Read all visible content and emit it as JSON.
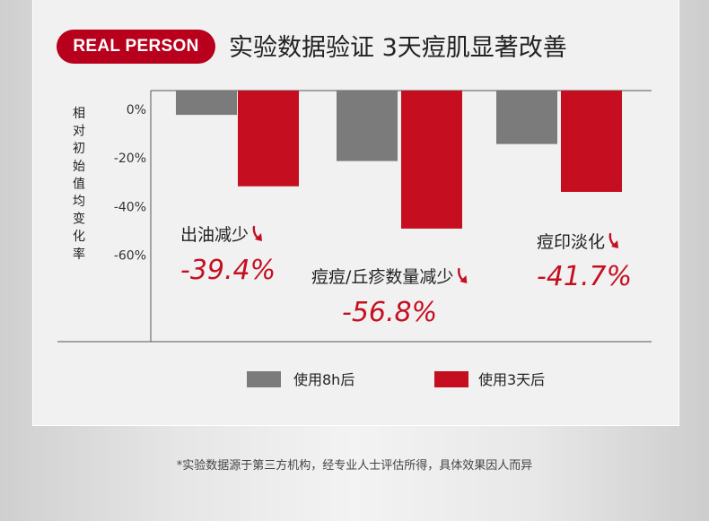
{
  "badge": "REAL PERSON",
  "headline": "实验数据验证 3天痘肌显著改善",
  "footnote": "*实验数据源于第三方机构，经专业人士评估所得，具体效果因人而异",
  "colors": {
    "series_8h": "#7b7b7b",
    "series_3d": "#c50f20",
    "badge": "#b8001d",
    "arrow": "#c50f20"
  },
  "chart_data": {
    "type": "bar",
    "ylabel": "相对初始值均变化率",
    "ytick_labels": [
      "0%",
      "-20%",
      "-40%",
      "-60%"
    ],
    "ytick_values": [
      0,
      -20,
      -40,
      -60
    ],
    "ylim": [
      -100,
      8
    ],
    "categories": [
      "出油减少",
      "痘痘/丘疹数量减少",
      "痘印淡化"
    ],
    "series": [
      {
        "name": "使用8h后",
        "values": [
          -10,
          -29,
          -22
        ]
      },
      {
        "name": "使用3天后",
        "values": [
          -39.4,
          -56.8,
          -41.7
        ]
      }
    ],
    "annotations": [
      {
        "label": "出油减少",
        "value": "-39.4%"
      },
      {
        "label": "痘痘/丘疹数量减少",
        "value": "-56.8%"
      },
      {
        "label": "痘印淡化",
        "value": "-41.7%"
      }
    ],
    "legend_position": "bottom",
    "arrow_icon": "red-down-arrow-icon"
  }
}
